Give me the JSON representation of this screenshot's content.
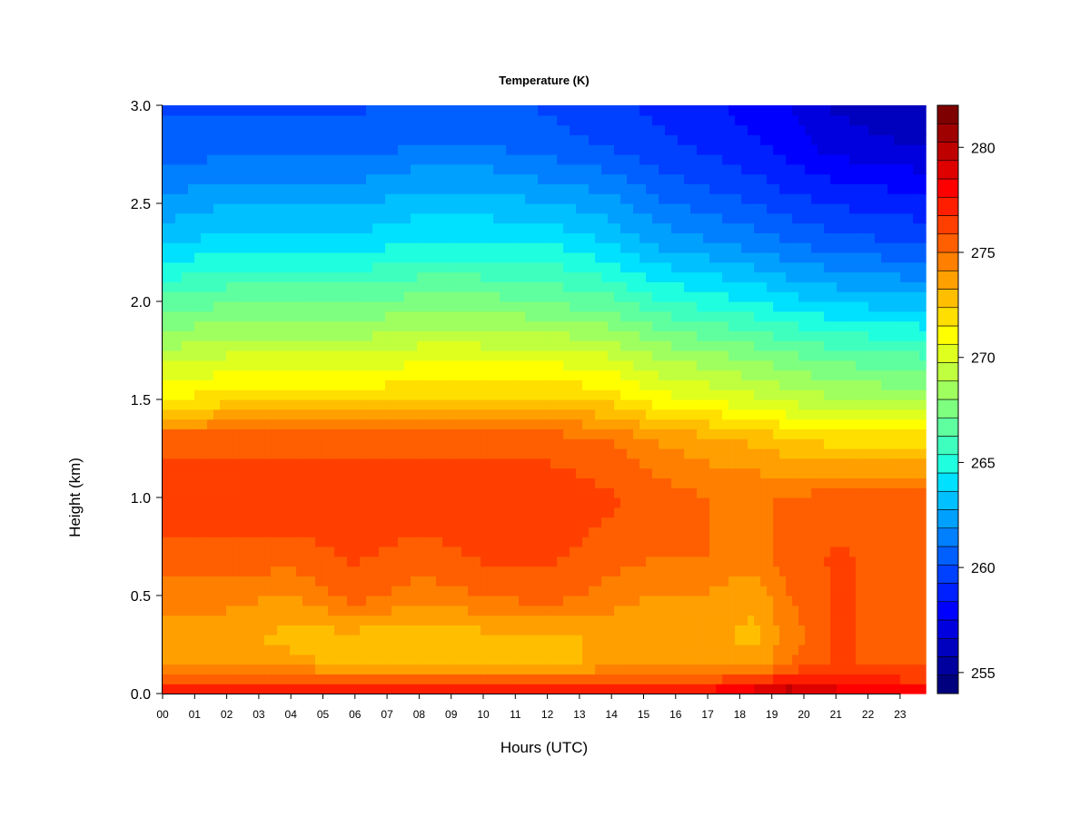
{
  "chart_data": {
    "type": "heatmap",
    "title": "Temperature (K)",
    "xlabel": "Hours (UTC)",
    "ylabel": "Height (km)",
    "xlim": [
      0,
      24
    ],
    "ylim": [
      0.0,
      3.0
    ],
    "x_ticks": [
      "00",
      "01",
      "02",
      "03",
      "04",
      "05",
      "06",
      "07",
      "08",
      "09",
      "10",
      "11",
      "12",
      "13",
      "14",
      "15",
      "16",
      "17",
      "18",
      "19",
      "20",
      "21",
      "22",
      "23"
    ],
    "y_ticks": [
      "0.0",
      "0.5",
      "1.0",
      "1.5",
      "2.0",
      "2.5",
      "3.0"
    ],
    "colorbar": {
      "min": 254,
      "max": 282,
      "ticks": [
        "255",
        "260",
        "265",
        "270",
        "275",
        "280"
      ],
      "colors": [
        "#00007f",
        "#00009f",
        "#0000bf",
        "#0000df",
        "#0000ff",
        "#0020ff",
        "#0040ff",
        "#0060ff",
        "#0080ff",
        "#00a0ff",
        "#00c0ff",
        "#00e0ff",
        "#1fffdf",
        "#3fffbf",
        "#5fff9f",
        "#7fff7f",
        "#9fff5f",
        "#bfff3f",
        "#dfff1f",
        "#ffff00",
        "#ffdf00",
        "#ffbf00",
        "#ff9f00",
        "#ff7f00",
        "#ff5f00",
        "#ff3f00",
        "#ff1f00",
        "#ff0000",
        "#df0000",
        "#bf0000",
        "#9f0000",
        "#7f0000"
      ]
    },
    "x_hours": [
      0,
      2,
      4,
      6,
      8,
      10,
      12,
      14,
      15.5,
      17,
      18.5,
      19.5,
      21,
      23.8
    ],
    "heights_km": [
      0.0,
      0.05,
      0.15,
      0.3,
      0.5,
      0.7,
      1.0,
      1.3,
      1.5,
      1.7,
      2.0,
      2.3,
      2.6,
      2.8,
      3.0
    ],
    "values": [
      [
        277.5,
        276.5,
        273.5,
        273.5,
        274.5,
        275.5,
        276.5,
        275.5,
        271.5,
        269.5,
        266.5,
        263.5,
        261.5,
        260.5,
        260.0
      ],
      [
        277.5,
        276.5,
        273.5,
        273.5,
        274.5,
        275.5,
        276.5,
        275.5,
        272.0,
        270.0,
        267.0,
        264.0,
        262.0,
        260.5,
        260.0
      ],
      [
        277.5,
        276.5,
        273.5,
        273.0,
        274.0,
        275.5,
        276.5,
        275.5,
        272.0,
        270.0,
        267.0,
        264.0,
        262.0,
        260.5,
        260.0
      ],
      [
        277.5,
        276.5,
        273.0,
        273.0,
        275.5,
        276.0,
        276.5,
        275.5,
        272.0,
        270.0,
        267.0,
        264.0,
        262.0,
        260.5,
        260.0
      ],
      [
        277.5,
        276.0,
        272.5,
        272.5,
        274.5,
        275.5,
        276.5,
        275.5,
        272.5,
        270.5,
        267.5,
        264.5,
        262.5,
        261.0,
        260.5
      ],
      [
        277.5,
        276.0,
        273.0,
        273.0,
        275.0,
        276.0,
        276.5,
        275.5,
        272.5,
        270.5,
        267.5,
        264.5,
        262.5,
        261.0,
        260.5
      ],
      [
        277.5,
        276.0,
        273.0,
        273.0,
        275.5,
        276.0,
        276.5,
        275.5,
        272.5,
        270.5,
        267.0,
        264.5,
        262.0,
        260.5,
        260.0
      ],
      [
        277.5,
        276.5,
        273.5,
        273.5,
        274.5,
        275.5,
        276.0,
        275.0,
        272.0,
        270.0,
        266.5,
        263.5,
        261.5,
        260.0,
        259.5
      ],
      [
        278.0,
        276.5,
        273.5,
        273.5,
        274.0,
        275.0,
        275.5,
        274.0,
        271.0,
        269.0,
        265.5,
        262.5,
        260.5,
        259.5,
        259.0
      ],
      [
        278.5,
        276.5,
        273.5,
        273.5,
        274.0,
        275.0,
        275.0,
        273.5,
        270.5,
        268.5,
        265.0,
        262.0,
        260.0,
        259.0,
        258.5
      ],
      [
        280.0,
        277.0,
        273.5,
        273.0,
        273.5,
        274.5,
        275.0,
        273.0,
        270.0,
        268.0,
        264.5,
        261.5,
        259.5,
        258.5,
        258.0
      ],
      [
        281.0,
        278.0,
        275.0,
        274.5,
        275.0,
        275.5,
        275.0,
        272.5,
        269.5,
        267.5,
        264.0,
        261.0,
        259.0,
        258.0,
        257.5
      ],
      [
        279.5,
        277.5,
        276.0,
        276.0,
        276.0,
        276.0,
        275.5,
        272.0,
        269.0,
        267.0,
        263.5,
        260.5,
        258.5,
        257.0,
        256.5
      ],
      [
        279.0,
        277.0,
        275.5,
        275.5,
        275.5,
        275.5,
        275.5,
        272.0,
        268.5,
        266.5,
        263.0,
        260.0,
        258.0,
        256.5,
        256.0
      ]
    ]
  }
}
